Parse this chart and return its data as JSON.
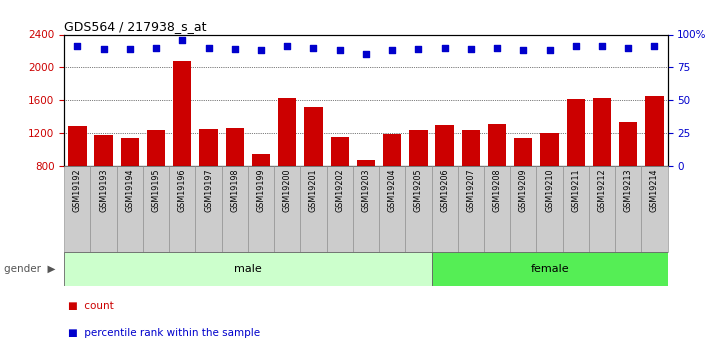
{
  "title": "GDS564 / 217938_s_at",
  "samples": [
    "GSM19192",
    "GSM19193",
    "GSM19194",
    "GSM19195",
    "GSM19196",
    "GSM19197",
    "GSM19198",
    "GSM19199",
    "GSM19200",
    "GSM19201",
    "GSM19202",
    "GSM19203",
    "GSM19204",
    "GSM19205",
    "GSM19206",
    "GSM19207",
    "GSM19208",
    "GSM19209",
    "GSM19210",
    "GSM19211",
    "GSM19212",
    "GSM19213",
    "GSM19214"
  ],
  "counts": [
    1280,
    1170,
    1140,
    1230,
    2080,
    1250,
    1260,
    940,
    1630,
    1520,
    1150,
    870,
    1180,
    1230,
    1300,
    1240,
    1310,
    1140,
    1200,
    1610,
    1620,
    1330,
    1650
  ],
  "percentiles": [
    91,
    89,
    89,
    90,
    96,
    90,
    89,
    88,
    91,
    90,
    88,
    85,
    88,
    89,
    90,
    89,
    90,
    88,
    88,
    91,
    91,
    90,
    91
  ],
  "gender": [
    "male",
    "male",
    "male",
    "male",
    "male",
    "male",
    "male",
    "male",
    "male",
    "male",
    "male",
    "male",
    "male",
    "male",
    "female",
    "female",
    "female",
    "female",
    "female",
    "female",
    "female",
    "female",
    "female"
  ],
  "ylim_left": [
    800,
    2400
  ],
  "ylim_right": [
    0,
    100
  ],
  "yticks_left": [
    800,
    1200,
    1600,
    2000,
    2400
  ],
  "yticks_right": [
    0,
    25,
    50,
    75,
    100
  ],
  "ytick_labels_right": [
    "0",
    "25",
    "50",
    "75",
    "100%"
  ],
  "bar_color": "#cc0000",
  "dot_color": "#0000cc",
  "male_bg": "#ccffcc",
  "female_bg": "#55ee55",
  "tick_bg": "#cccccc",
  "legend_count_label": "count",
  "legend_pct_label": "percentile rank within the sample",
  "gender_label": "gender"
}
